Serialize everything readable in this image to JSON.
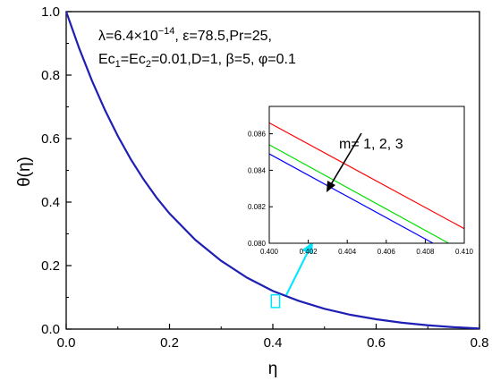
{
  "chart_data": [
    {
      "type": "line",
      "title": "",
      "xlabel": "η",
      "ylabel": "θ(η)",
      "xlim": [
        0.0,
        0.8
      ],
      "ylim": [
        0.0,
        1.0
      ],
      "xticks": [
        "0.0",
        "0.2",
        "0.4",
        "0.6",
        "0.8"
      ],
      "yticks": [
        "0.0",
        "0.2",
        "0.4",
        "0.6",
        "0.8",
        "1.0"
      ],
      "grid": false,
      "annotation": {
        "line1": "λ=6.4×10",
        "line1_sup": "−14",
        "line1_rest": ", ε=78.5,Pr=25,",
        "line2_a": "Ec",
        "line2_sub1": "1",
        "line2_b": "=Ec",
        "line2_sub2": "2",
        "line2_c": "=0.01,D=1, β=5, φ=0.1"
      },
      "series": [
        {
          "color": "#1f1fb4",
          "x": [
            0.0,
            0.025,
            0.05,
            0.075,
            0.1,
            0.125,
            0.15,
            0.175,
            0.2,
            0.25,
            0.3,
            0.35,
            0.4,
            0.45,
            0.5,
            0.55,
            0.6,
            0.65,
            0.7,
            0.75,
            0.8
          ],
          "y": [
            1.0,
            0.885,
            0.782,
            0.69,
            0.608,
            0.535,
            0.471,
            0.414,
            0.364,
            0.281,
            0.215,
            0.162,
            0.12,
            0.089,
            0.064,
            0.045,
            0.031,
            0.02,
            0.012,
            0.006,
            0.002
          ]
        }
      ],
      "highlight_box": {
        "x": [
          0.397,
          0.413
        ],
        "y": [
          0.068,
          0.108
        ],
        "color": "#00e5ff"
      }
    },
    {
      "type": "line",
      "title": "",
      "xlabel": "",
      "ylabel": "",
      "xlim": [
        0.4,
        0.41
      ],
      "ylim": [
        0.08,
        0.0875
      ],
      "xticks": [
        "0.400",
        "0.402",
        "0.404",
        "0.406",
        "0.408",
        "0.410"
      ],
      "yticks": [
        "0.080",
        "0.082",
        "0.084",
        "0.086"
      ],
      "label": "m= 1, 2, 3",
      "series": [
        {
          "color": "#ff0000",
          "x": [
            0.4,
            0.41
          ],
          "y": [
            0.0866,
            0.0808
          ]
        },
        {
          "color": "#00e000",
          "x": [
            0.4,
            0.4092
          ],
          "y": [
            0.0854,
            0.08
          ]
        },
        {
          "color": "#0000ff",
          "x": [
            0.4,
            0.4084
          ],
          "y": [
            0.0849,
            0.08
          ]
        }
      ]
    }
  ]
}
